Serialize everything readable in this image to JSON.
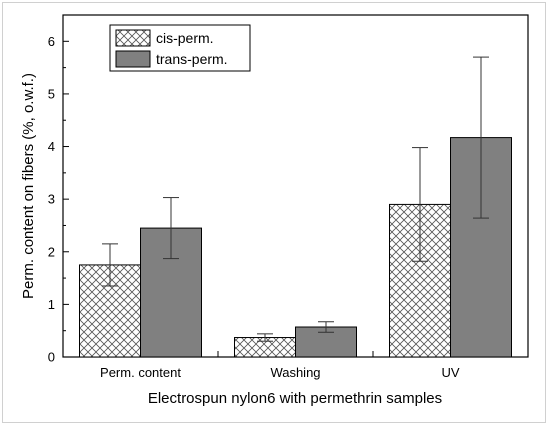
{
  "chart_data": {
    "type": "bar",
    "categories": [
      "Perm. content",
      "Washing",
      "UV"
    ],
    "series": [
      {
        "name": "cis-perm.",
        "values": [
          1.75,
          0.37,
          2.9
        ],
        "errors": [
          0.4,
          0.07,
          1.08
        ],
        "fill": "hatch"
      },
      {
        "name": "trans-perm.",
        "values": [
          2.45,
          0.57,
          4.17
        ],
        "errors": [
          0.58,
          0.1,
          1.53
        ],
        "fill": "#808080"
      }
    ],
    "xlabel": "Electrospun nylon6 with permethrin samples",
    "ylabel": "Perm. content on fibers (%, o.w.f.)",
    "ylim": [
      0,
      6.5
    ],
    "yticks": [
      "0",
      "1",
      "2",
      "3",
      "4",
      "5",
      "6"
    ],
    "grid": false,
    "legend": "top-left"
  }
}
